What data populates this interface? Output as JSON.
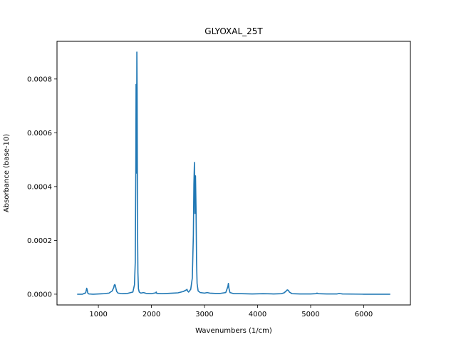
{
  "chart_data": {
    "type": "line",
    "title": "GLYOXAL_25T",
    "xlabel": "Wavenumbers (1/cm)",
    "ylabel": "Absorbance (base-10)",
    "xlim": [
      220,
      6880
    ],
    "ylim": [
      -4e-05,
      0.00094
    ],
    "xticks": [
      1000,
      2000,
      3000,
      4000,
      5000,
      6000
    ],
    "xtick_labels": [
      "1000",
      "2000",
      "3000",
      "4000",
      "5000",
      "6000"
    ],
    "yticks": [
      0.0,
      0.0002,
      0.0004,
      0.0006,
      0.0008
    ],
    "ytick_labels": [
      "0.0000",
      "0.0002",
      "0.0004",
      "0.0006",
      "0.0008"
    ],
    "grid": false,
    "legend": "none",
    "series": [
      {
        "color": "#1f77b4",
        "x": [
          600,
          700,
          760,
          780,
          790,
          800,
          820,
          900,
          1000,
          1100,
          1200,
          1260,
          1290,
          1300,
          1310,
          1320,
          1330,
          1345,
          1370,
          1450,
          1550,
          1650,
          1680,
          1695,
          1705,
          1710,
          1715,
          1720,
          1725,
          1730,
          1735,
          1740,
          1745,
          1755,
          1770,
          1800,
          1850,
          1900,
          2000,
          2080,
          2090,
          2100,
          2200,
          2300,
          2400,
          2500,
          2600,
          2650,
          2670,
          2680,
          2700,
          2740,
          2770,
          2790,
          2800,
          2810,
          2820,
          2830,
          2840,
          2850,
          2860,
          2880,
          2920,
          3000,
          3050,
          3100,
          3200,
          3300,
          3400,
          3440,
          3450,
          3460,
          3480,
          3550,
          3700,
          3900,
          4100,
          4300,
          4450,
          4500,
          4540,
          4560,
          4580,
          4600,
          4650,
          4800,
          5000,
          5100,
          5120,
          5140,
          5300,
          5500,
          5540,
          5560,
          5600,
          6000,
          6500
        ],
        "y": [
          0.0,
          0.0,
          5e-06,
          2.2e-05,
          1.5e-05,
          4e-06,
          1e-06,
          0.0,
          1e-06,
          2e-06,
          4e-06,
          1.2e-05,
          2.5e-05,
          3.4e-05,
          3.6e-05,
          3.2e-05,
          2.2e-05,
          1e-05,
          4e-06,
          2e-06,
          3e-06,
          8e-06,
          3.5e-05,
          0.00012,
          0.00045,
          0.00078,
          0.0005,
          0.00045,
          0.0009,
          0.00075,
          0.00042,
          0.0002,
          8e-05,
          2e-05,
          8e-06,
          4e-06,
          6e-06,
          3e-06,
          2e-06,
          5e-06,
          8e-06,
          3e-06,
          2e-06,
          3e-06,
          4e-06,
          5e-06,
          1e-05,
          1.5e-05,
          1.8e-05,
          1.2e-05,
          8e-06,
          1.8e-05,
          6e-05,
          0.00022,
          0.00041,
          0.00049,
          0.0003,
          0.00044,
          0.00032,
          0.00012,
          4e-05,
          1.2e-05,
          6e-06,
          4e-06,
          6e-06,
          4e-06,
          3e-06,
          3e-06,
          6e-06,
          2.8e-05,
          4e-05,
          2.2e-05,
          6e-06,
          2e-06,
          2e-06,
          1e-06,
          2e-06,
          1e-06,
          2e-06,
          5e-06,
          1.2e-05,
          1.6e-05,
          1.4e-05,
          8e-06,
          2e-06,
          1e-06,
          1e-06,
          2e-06,
          4e-06,
          2e-06,
          1e-06,
          1e-06,
          3e-06,
          2e-06,
          1e-06,
          0.0,
          0.0
        ]
      }
    ]
  }
}
